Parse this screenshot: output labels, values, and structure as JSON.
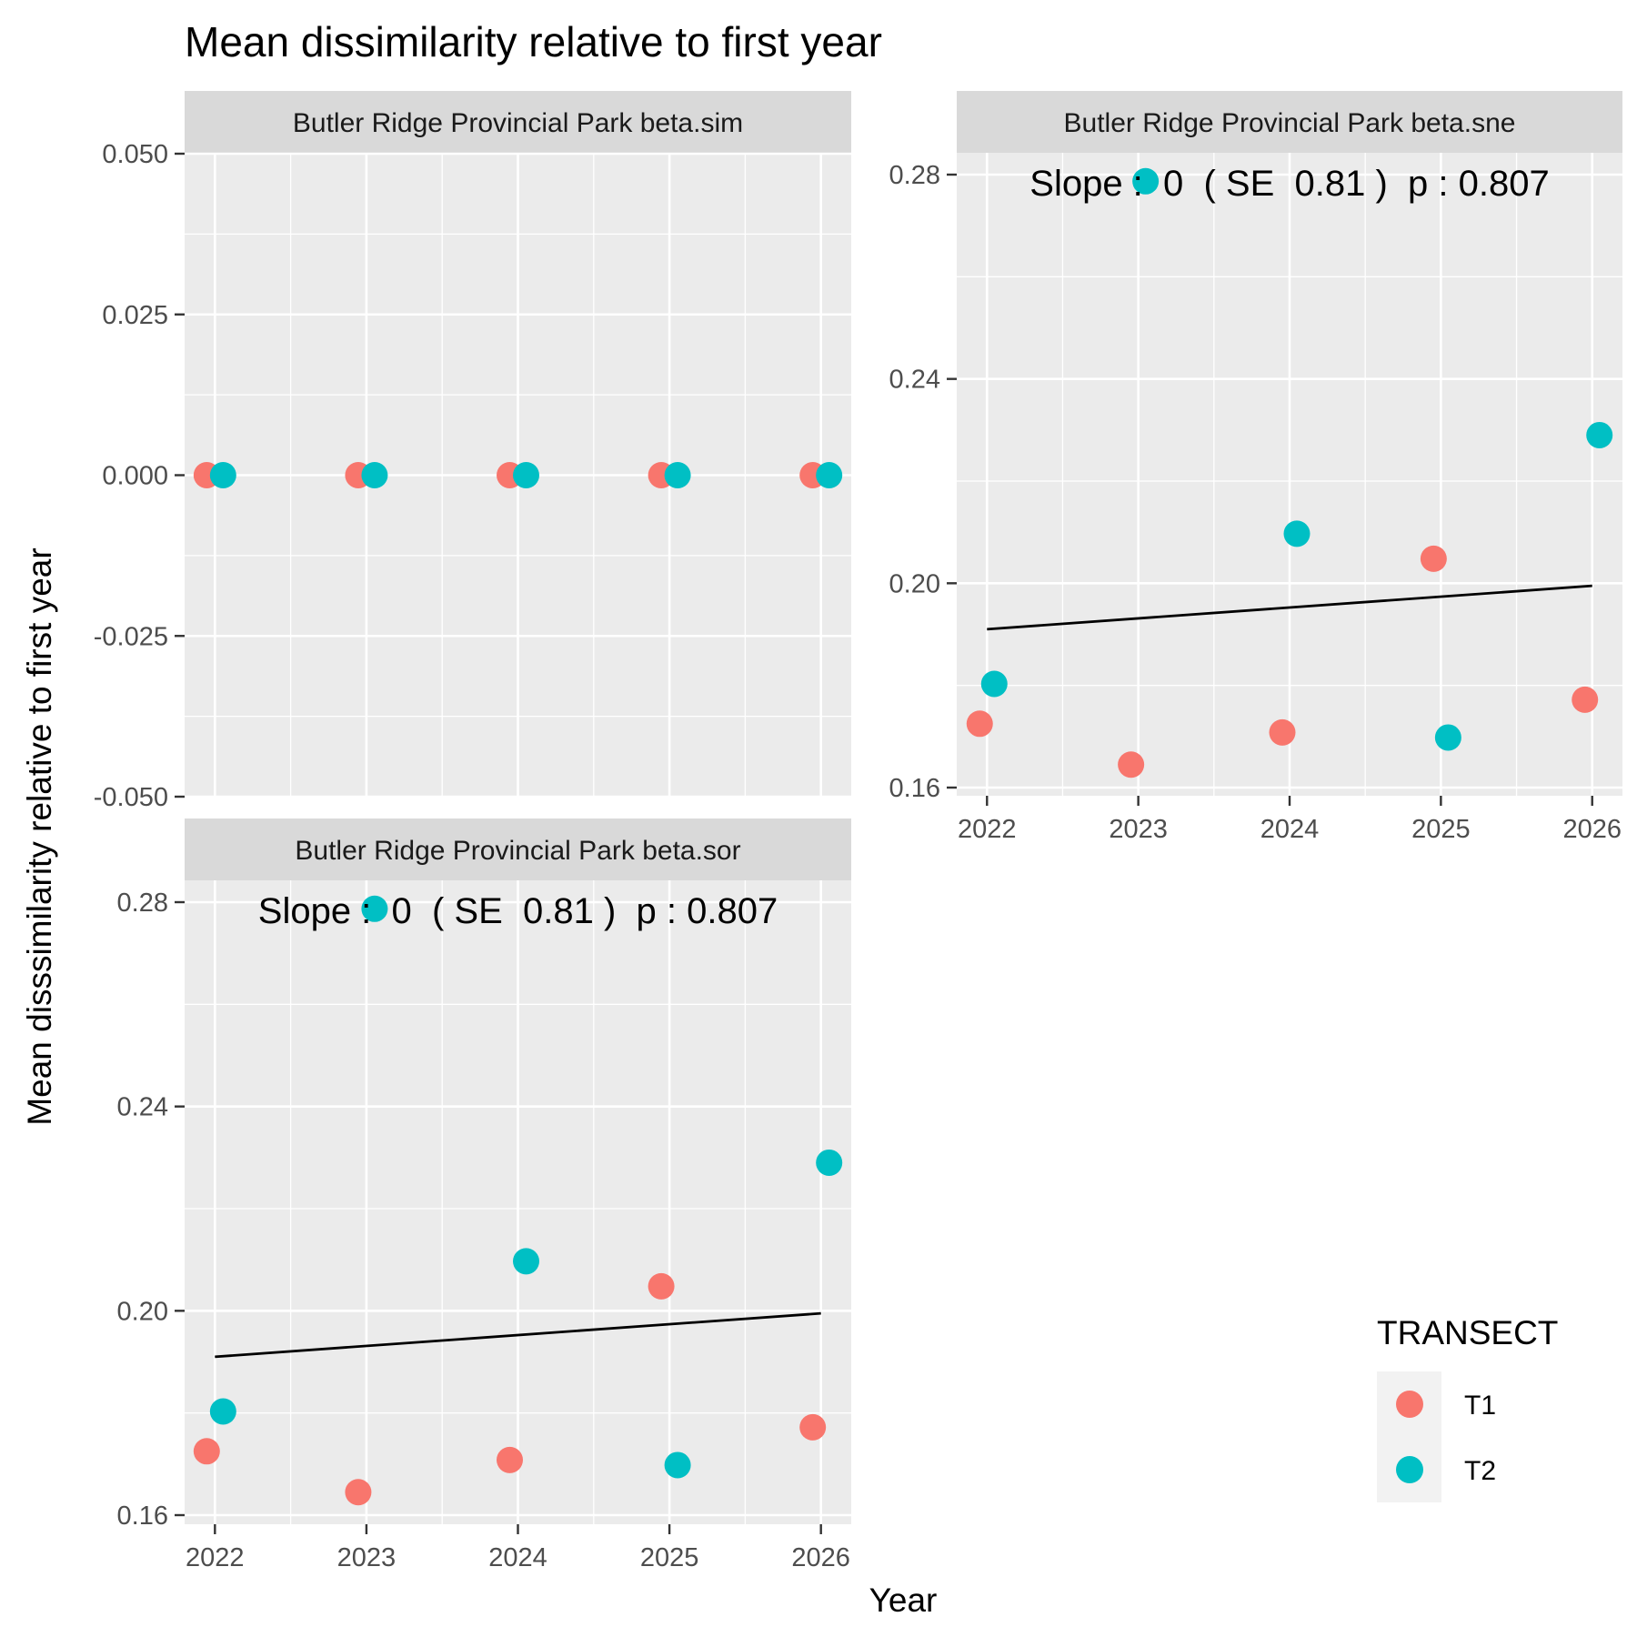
{
  "title": "Mean dissimilarity relative to first year",
  "ylabel": "Mean disssimilarity relative to first year",
  "xlabel": "Year",
  "legend": {
    "title": "TRANSECT",
    "placement": "bottom-right",
    "items": [
      {
        "label": "T1",
        "color": "#F8766D"
      },
      {
        "label": "T2",
        "color": "#00BFC4"
      }
    ]
  },
  "colors": {
    "T1": "#F8766D",
    "T2": "#00BFC4",
    "panel_bg": "#EBEBEB",
    "strip_bg": "#D9D9D9",
    "grid": "#FFFFFF",
    "trend": "#000000"
  },
  "chart_data": [
    {
      "type": "scatter",
      "strip": "Butler Ridge Provincial Park beta.sim",
      "x_ticks": [
        "2022",
        "2023",
        "2024",
        "2025",
        "2026"
      ],
      "y_ticks": [
        "0.050",
        "0.025",
        "0.000",
        "-0.025",
        "-0.050"
      ],
      "ylim": [
        -0.05,
        0.05
      ],
      "series": [
        {
          "name": "T1",
          "x": [
            2022,
            2023,
            2024,
            2025,
            2026
          ],
          "values": [
            0,
            0,
            0,
            0,
            0
          ]
        },
        {
          "name": "T2",
          "x": [
            2022,
            2023,
            2024,
            2025,
            2026
          ],
          "values": [
            0,
            0,
            0,
            0,
            0
          ]
        }
      ]
    },
    {
      "type": "scatter",
      "strip": "Butler Ridge Provincial Park beta.sne",
      "x_ticks": [
        "2022",
        "2023",
        "2024",
        "2025",
        "2026"
      ],
      "y_ticks": [
        "0.28",
        "0.24",
        "0.20",
        "0.16"
      ],
      "ylim": [
        0.16,
        0.28
      ],
      "annotation": "Slope :  0  ( SE  0.81 )  p : 0.807",
      "trend": {
        "x": [
          2022,
          2026
        ],
        "y": [
          0.191,
          0.1995
        ]
      },
      "series": [
        {
          "name": "T1",
          "x": [
            2022,
            2023,
            2024,
            2025,
            2026
          ],
          "values": [
            0.1725,
            0.1645,
            0.1708,
            0.2048,
            0.1772
          ]
        },
        {
          "name": "T2",
          "x": [
            2022,
            2023,
            2024,
            2025,
            2026
          ],
          "values": [
            0.1803,
            0.2787,
            0.2097,
            0.1698,
            0.229
          ]
        }
      ]
    },
    {
      "type": "scatter",
      "strip": "Butler Ridge Provincial Park beta.sor",
      "x_ticks": [
        "2022",
        "2023",
        "2024",
        "2025",
        "2026"
      ],
      "y_ticks": [
        "0.28",
        "0.24",
        "0.20",
        "0.16"
      ],
      "ylim": [
        0.16,
        0.28
      ],
      "annotation": "Slope :  0  ( SE  0.81 )  p : 0.807",
      "trend": {
        "x": [
          2022,
          2026
        ],
        "y": [
          0.191,
          0.1995
        ]
      },
      "series": [
        {
          "name": "T1",
          "x": [
            2022,
            2023,
            2024,
            2025,
            2026
          ],
          "values": [
            0.1725,
            0.1645,
            0.1708,
            0.2048,
            0.1772
          ]
        },
        {
          "name": "T2",
          "x": [
            2022,
            2023,
            2024,
            2025,
            2026
          ],
          "values": [
            0.1803,
            0.2787,
            0.2097,
            0.1698,
            0.229
          ]
        }
      ]
    }
  ]
}
